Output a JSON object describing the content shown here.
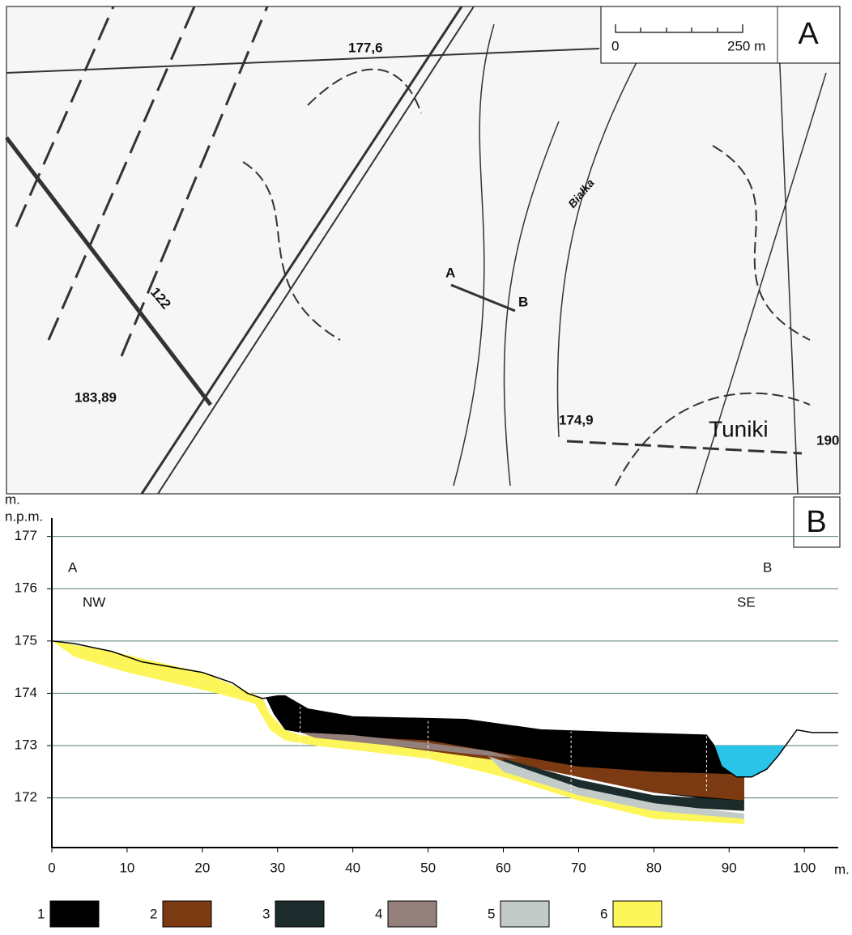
{
  "map": {
    "panel_label": "A",
    "scale": {
      "start": "0",
      "end": "250 m"
    },
    "labels": [
      "177,6",
      "183,89",
      "174,9",
      "Tuniki",
      "190",
      "122",
      "Białka",
      "A",
      "B"
    ]
  },
  "chart_data": {
    "type": "area",
    "panel_label": "B",
    "ylabel_lines": [
      "m.",
      "n.p.m."
    ],
    "xlabel": "m.",
    "annotations": [
      "A",
      "NW",
      "B",
      "SE"
    ],
    "xlim": [
      0,
      104.5
    ],
    "ylim": [
      171.05,
      177.35
    ],
    "xticks": [
      0,
      10,
      20,
      30,
      40,
      50,
      60,
      70,
      80,
      90,
      100
    ],
    "yticks": [
      172,
      173,
      174,
      175,
      176,
      177
    ],
    "grid": true,
    "boreholes": [
      33,
      50,
      69,
      87
    ],
    "layers": [
      {
        "name": "1",
        "color": "#000000",
        "x": [
          28.5,
          30,
          31,
          34,
          40,
          55,
          65,
          75,
          87,
          88,
          89,
          91,
          92,
          92,
          80,
          70,
          60,
          50,
          40,
          33,
          31,
          29.5
        ],
        "y": [
          173.9,
          173.95,
          173.95,
          173.7,
          173.55,
          173.5,
          173.3,
          173.25,
          173.2,
          173.0,
          172.6,
          172.4,
          172.4,
          171.9,
          172.1,
          172.4,
          172.75,
          173.0,
          173.2,
          173.25,
          173.3,
          173.6
        ]
      },
      {
        "name": "2",
        "color": "#7b3a12",
        "x": [
          36,
          50,
          60,
          70,
          80,
          92,
          92,
          80,
          70,
          60,
          50,
          40
        ],
        "y": [
          173.2,
          173.1,
          172.85,
          172.6,
          172.5,
          172.45,
          171.95,
          172.1,
          172.4,
          172.7,
          172.9,
          173.1
        ]
      },
      {
        "name": "3",
        "color": "#1c2b2b",
        "x": [
          60,
          70,
          80,
          92,
          92,
          80,
          70,
          60
        ],
        "y": [
          172.75,
          172.35,
          172.05,
          171.95,
          171.75,
          171.85,
          172.1,
          172.6
        ]
      },
      {
        "name": "4",
        "color": "#94807a",
        "x": [
          33,
          40,
          50,
          58,
          62,
          55,
          45,
          35
        ],
        "y": [
          173.25,
          173.2,
          173.05,
          172.9,
          172.75,
          172.85,
          173.0,
          173.15
        ]
      },
      {
        "name": "5",
        "color": "#c3cbc9",
        "x": [
          58,
          70,
          80,
          92,
          92,
          80,
          70,
          60
        ],
        "y": [
          172.8,
          172.2,
          171.9,
          171.7,
          171.6,
          171.75,
          172.05,
          172.5
        ]
      },
      {
        "name": "6",
        "color": "#fdf65a",
        "x": [
          0,
          8,
          20,
          25,
          28,
          29,
          31,
          33,
          50,
          60,
          70,
          80,
          88,
          92,
          92,
          80,
          70,
          60,
          50,
          35,
          31,
          29,
          27,
          22,
          10,
          3
        ],
        "y": [
          175,
          174.8,
          174.4,
          174.1,
          173.9,
          173.6,
          173.3,
          173.2,
          173.0,
          172.8,
          172.3,
          171.95,
          171.7,
          171.6,
          171.5,
          171.6,
          171.95,
          172.4,
          172.75,
          173.0,
          173.1,
          173.3,
          173.8,
          174.0,
          174.4,
          174.7
        ]
      }
    ],
    "water": {
      "color": "#29c4e8",
      "x": [
        88,
        97.5,
        96.5,
        95,
        93,
        91,
        89
      ],
      "y": [
        173,
        173,
        172.8,
        172.55,
        172.4,
        172.4,
        172.6
      ]
    },
    "surface": {
      "x": [
        0,
        3,
        8,
        12,
        20,
        24,
        26,
        28,
        30,
        31,
        34,
        40,
        55,
        65,
        75,
        87,
        88,
        89,
        91,
        93,
        95,
        96.5,
        97.5,
        99,
        101,
        104.5
      ],
      "y": [
        175,
        174.95,
        174.8,
        174.6,
        174.4,
        174.2,
        174.0,
        173.9,
        173.95,
        173.95,
        173.7,
        173.55,
        173.5,
        173.3,
        173.25,
        173.2,
        173.0,
        172.6,
        172.4,
        172.4,
        172.55,
        172.8,
        173,
        173.3,
        173.25,
        173.25
      ]
    }
  }
}
